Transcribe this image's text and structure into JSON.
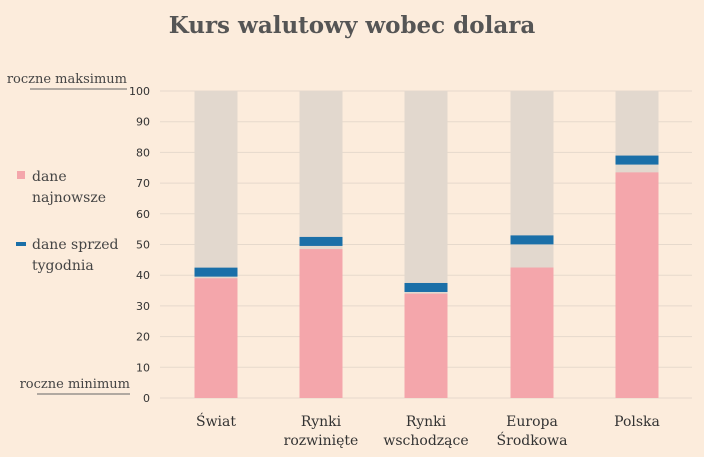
{
  "chart_data": {
    "type": "bar",
    "title": "Kurs walutowy wobec dolara",
    "categories": [
      [
        "Świat"
      ],
      [
        "Rynki",
        "rozwinięte"
      ],
      [
        "Rynki",
        "wschodzące"
      ],
      [
        "Europa",
        "Środkowa"
      ],
      [
        "Polska"
      ]
    ],
    "series": [
      {
        "name": "dane najnowsze",
        "values": [
          39,
          48.5,
          34,
          42.5,
          73.5
        ]
      },
      {
        "name": "dane sprzed tygodnia",
        "values": [
          41,
          51,
          36,
          51.5,
          77.5
        ]
      }
    ],
    "background_max": 100,
    "ylim": [
      0,
      100
    ],
    "yticks": [
      0,
      10,
      20,
      30,
      40,
      50,
      60,
      70,
      80,
      90,
      100
    ],
    "y_top_label": "roczne maksimum",
    "y_bottom_label": "roczne minimum",
    "legend": [
      {
        "lines": [
          "dane",
          "najnowsze"
        ],
        "marker": "square"
      },
      {
        "lines": [
          "dane sprzed",
          "tygodnia"
        ],
        "marker": "dash"
      }
    ],
    "legend_placement": "left",
    "grid": true,
    "colors": {
      "latest": "#f4a6ab",
      "previous": "#1a6fa8",
      "range": "#e2d8ce",
      "grid": "#e6d9cc"
    }
  }
}
